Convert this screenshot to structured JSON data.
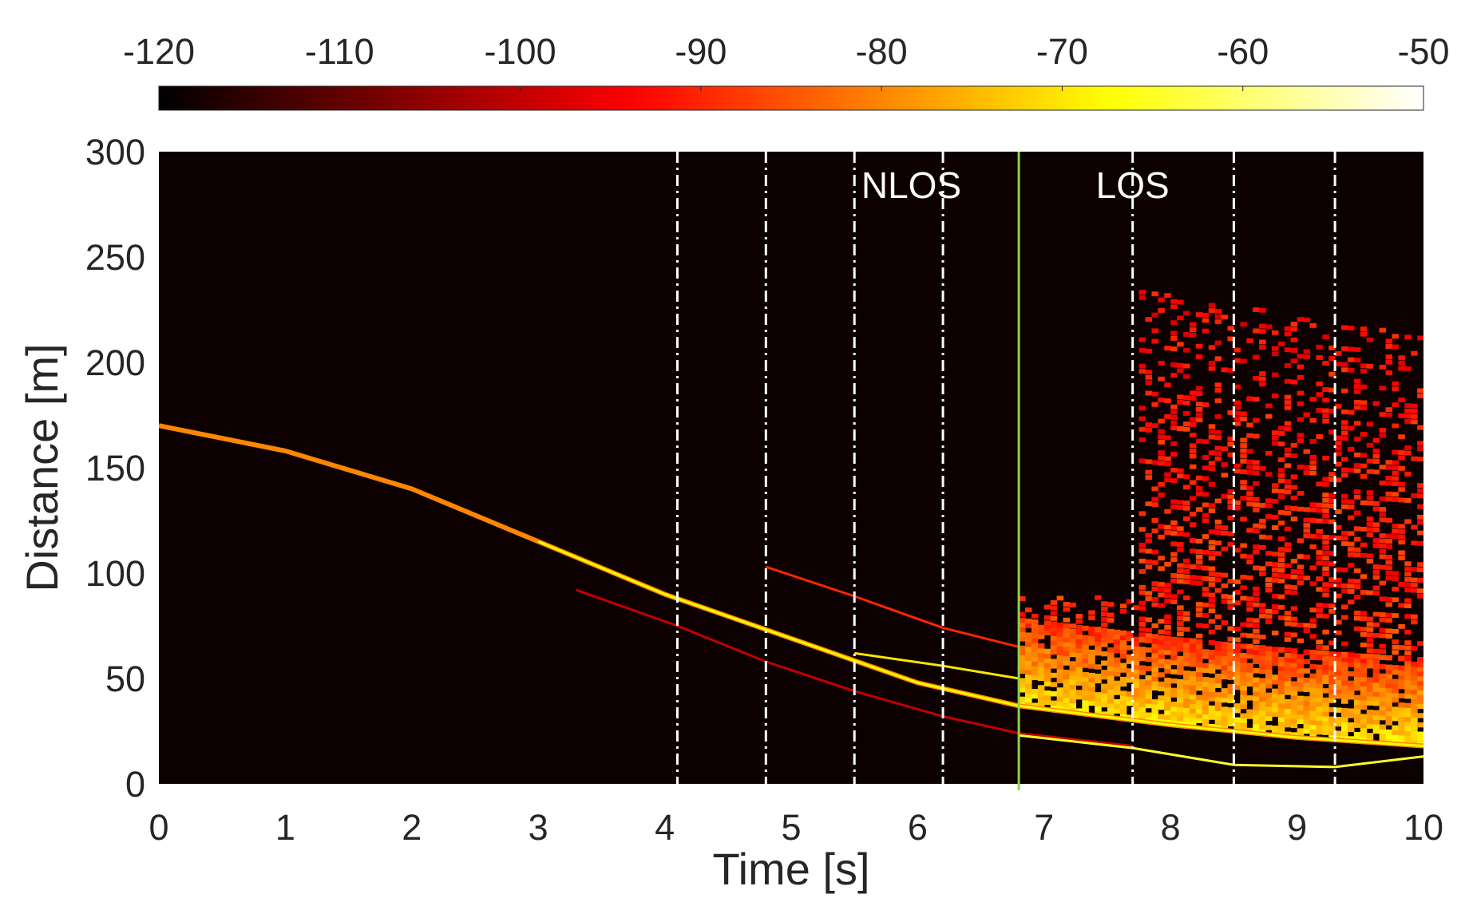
{
  "chart_data": {
    "type": "heatmap",
    "title": "",
    "xlabel": "Time [s]",
    "ylabel": "Distance [m]",
    "xlim": [
      0,
      10
    ],
    "ylim": [
      0,
      300
    ],
    "x_ticks": [
      "0",
      "1",
      "2",
      "3",
      "4",
      "5",
      "6",
      "7",
      "8",
      "9",
      "10"
    ],
    "y_ticks": [
      "0",
      "50",
      "100",
      "150",
      "200",
      "250",
      "300"
    ],
    "grid": false,
    "colorbar": {
      "placement": "top",
      "range": [
        -120,
        -50
      ],
      "ticks": [
        "-120",
        "-110",
        "-100",
        "-90",
        "-80",
        "-70",
        "-60",
        "-50"
      ],
      "colormap": "hot"
    },
    "background_color": "#0d0000",
    "dashed_lines_x": [
      4.1,
      4.8,
      5.5,
      6.2,
      7.7,
      8.5,
      9.3
    ],
    "transition_line": {
      "x": 6.8,
      "color": "#8fd14f"
    },
    "annotations": [
      {
        "text": "NLOS",
        "x": 5.95,
        "y": 278
      },
      {
        "text": "LOS",
        "x": 7.7,
        "y": 278
      }
    ],
    "main_trace": {
      "dB": -80,
      "points": [
        [
          0,
          170
        ],
        [
          1,
          158
        ],
        [
          2,
          140
        ],
        [
          3,
          115
        ],
        [
          4,
          90
        ],
        [
          5,
          69
        ],
        [
          6,
          48
        ],
        [
          6.8,
          37
        ],
        [
          8,
          28
        ],
        [
          9,
          22
        ],
        [
          10,
          18
        ]
      ]
    },
    "secondary_traces": [
      {
        "dB": -100,
        "points": [
          [
            3.3,
            92
          ],
          [
            4.1,
            75
          ],
          [
            4.8,
            58
          ],
          [
            5.5,
            44
          ],
          [
            6.2,
            32
          ],
          [
            6.8,
            24
          ],
          [
            7.7,
            18
          ]
        ]
      },
      {
        "dB": -90,
        "points": [
          [
            4.8,
            103
          ],
          [
            5.5,
            89
          ],
          [
            6.2,
            74
          ],
          [
            6.8,
            65
          ]
        ]
      },
      {
        "dB": -70,
        "points": [
          [
            5.5,
            62
          ],
          [
            6.2,
            56
          ],
          [
            6.8,
            50
          ]
        ]
      },
      {
        "dB": -65,
        "points": [
          [
            6.8,
            23
          ],
          [
            7.7,
            17
          ],
          [
            8.5,
            9
          ],
          [
            9.3,
            8
          ],
          [
            10,
            13
          ]
        ]
      }
    ],
    "los_region": {
      "x_range": [
        6.8,
        10
      ],
      "dense_band_dB": -65,
      "scattered_dB": -88,
      "max_distance": 235
    }
  }
}
